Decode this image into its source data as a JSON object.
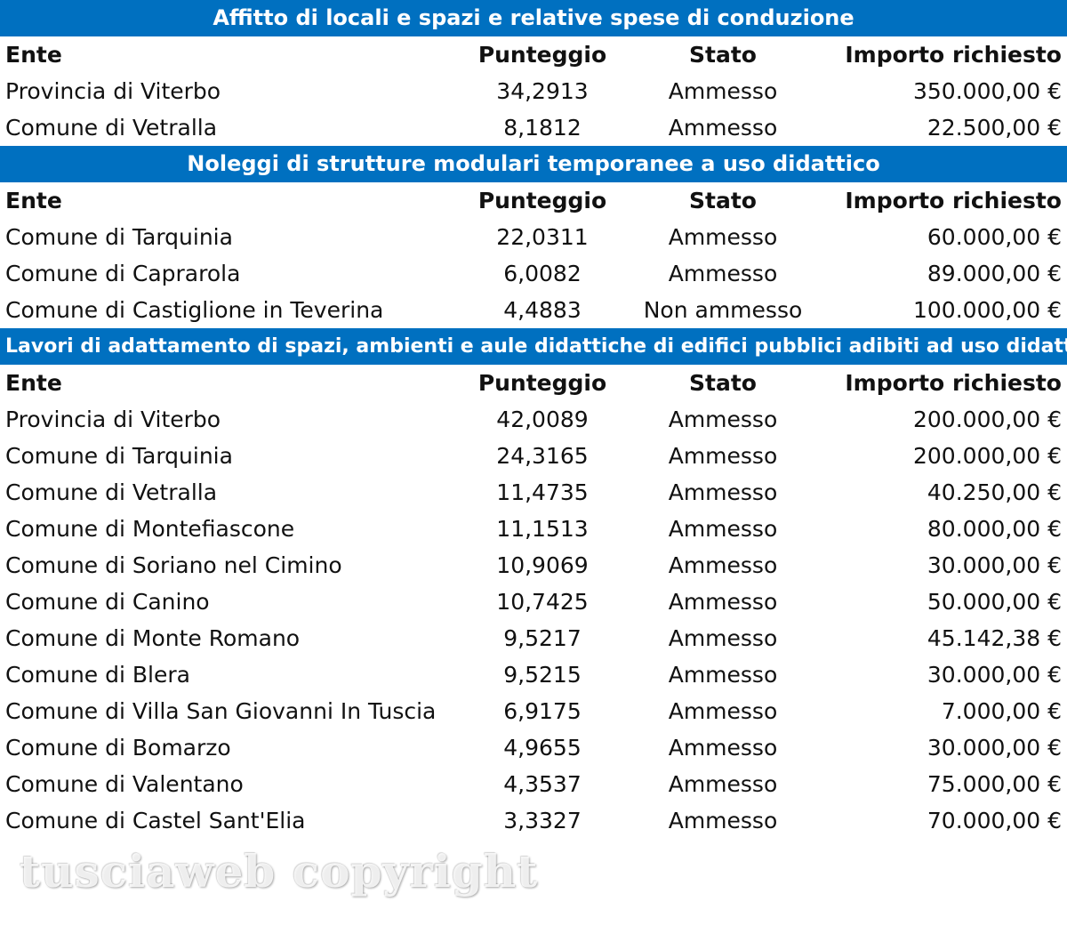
{
  "columns": {
    "ente": "Ente",
    "punteggio": "Punteggio",
    "stato": "Stato",
    "importo": "Importo richiesto"
  },
  "sections": [
    {
      "title": "Affitto di locali e spazi e relative spese di conduzione",
      "rows": [
        {
          "ente": "Provincia di Viterbo",
          "punteggio": "34,2913",
          "stato": "Ammesso",
          "importo": "350.000,00 €"
        },
        {
          "ente": "Comune di Vetralla",
          "punteggio": "8,1812",
          "stato": "Ammesso",
          "importo": "22.500,00 €"
        }
      ]
    },
    {
      "title": "Noleggi di strutture modulari temporanee a uso didattico",
      "rows": [
        {
          "ente": "Comune di Tarquinia",
          "punteggio": "22,0311",
          "stato": "Ammesso",
          "importo": "60.000,00 €"
        },
        {
          "ente": "Comune di Caprarola",
          "punteggio": "6,0082",
          "stato": "Ammesso",
          "importo": "89.000,00 €"
        },
        {
          "ente": "Comune di Castiglione in Teverina",
          "punteggio": "4,4883",
          "stato": "Non ammesso",
          "importo": "100.000,00 €"
        }
      ]
    },
    {
      "title": "Lavori di adattamento di spazi, ambienti e aule didattiche di edifici pubblici adibiti ad uso didattico",
      "rows": [
        {
          "ente": "Provincia di Viterbo",
          "punteggio": "42,0089",
          "stato": "Ammesso",
          "importo": "200.000,00 €"
        },
        {
          "ente": "Comune di Tarquinia",
          "punteggio": "24,3165",
          "stato": "Ammesso",
          "importo": "200.000,00 €"
        },
        {
          "ente": "Comune di Vetralla",
          "punteggio": "11,4735",
          "stato": "Ammesso",
          "importo": "40.250,00 €"
        },
        {
          "ente": "Comune di Montefiascone",
          "punteggio": "11,1513",
          "stato": "Ammesso",
          "importo": "80.000,00 €"
        },
        {
          "ente": "Comune di Soriano nel Cimino",
          "punteggio": "10,9069",
          "stato": "Ammesso",
          "importo": "30.000,00 €"
        },
        {
          "ente": "Comune di Canino",
          "punteggio": "10,7425",
          "stato": "Ammesso",
          "importo": "50.000,00 €"
        },
        {
          "ente": "Comune di Monte Romano",
          "punteggio": "9,5217",
          "stato": "Ammesso",
          "importo": "45.142,38 €"
        },
        {
          "ente": "Comune di Blera",
          "punteggio": "9,5215",
          "stato": "Ammesso",
          "importo": "30.000,00 €"
        },
        {
          "ente": "Comune di Villa San Giovanni In Tuscia",
          "punteggio": "6,9175",
          "stato": "Ammesso",
          "importo": "7.000,00 €"
        },
        {
          "ente": "Comune di Bomarzo",
          "punteggio": "4,9655",
          "stato": "Ammesso",
          "importo": "30.000,00 €"
        },
        {
          "ente": "Comune di Valentano",
          "punteggio": "4,3537",
          "stato": "Ammesso",
          "importo": "75.000,00 €"
        },
        {
          "ente": "Comune di Castel Sant'Elia",
          "punteggio": "3,3327",
          "stato": "Ammesso",
          "importo": "70.000,00 €"
        }
      ]
    }
  ],
  "watermark": "tusciaweb copyright",
  "colors": {
    "header_bg": "#0070c0",
    "header_text": "#ffffff"
  }
}
